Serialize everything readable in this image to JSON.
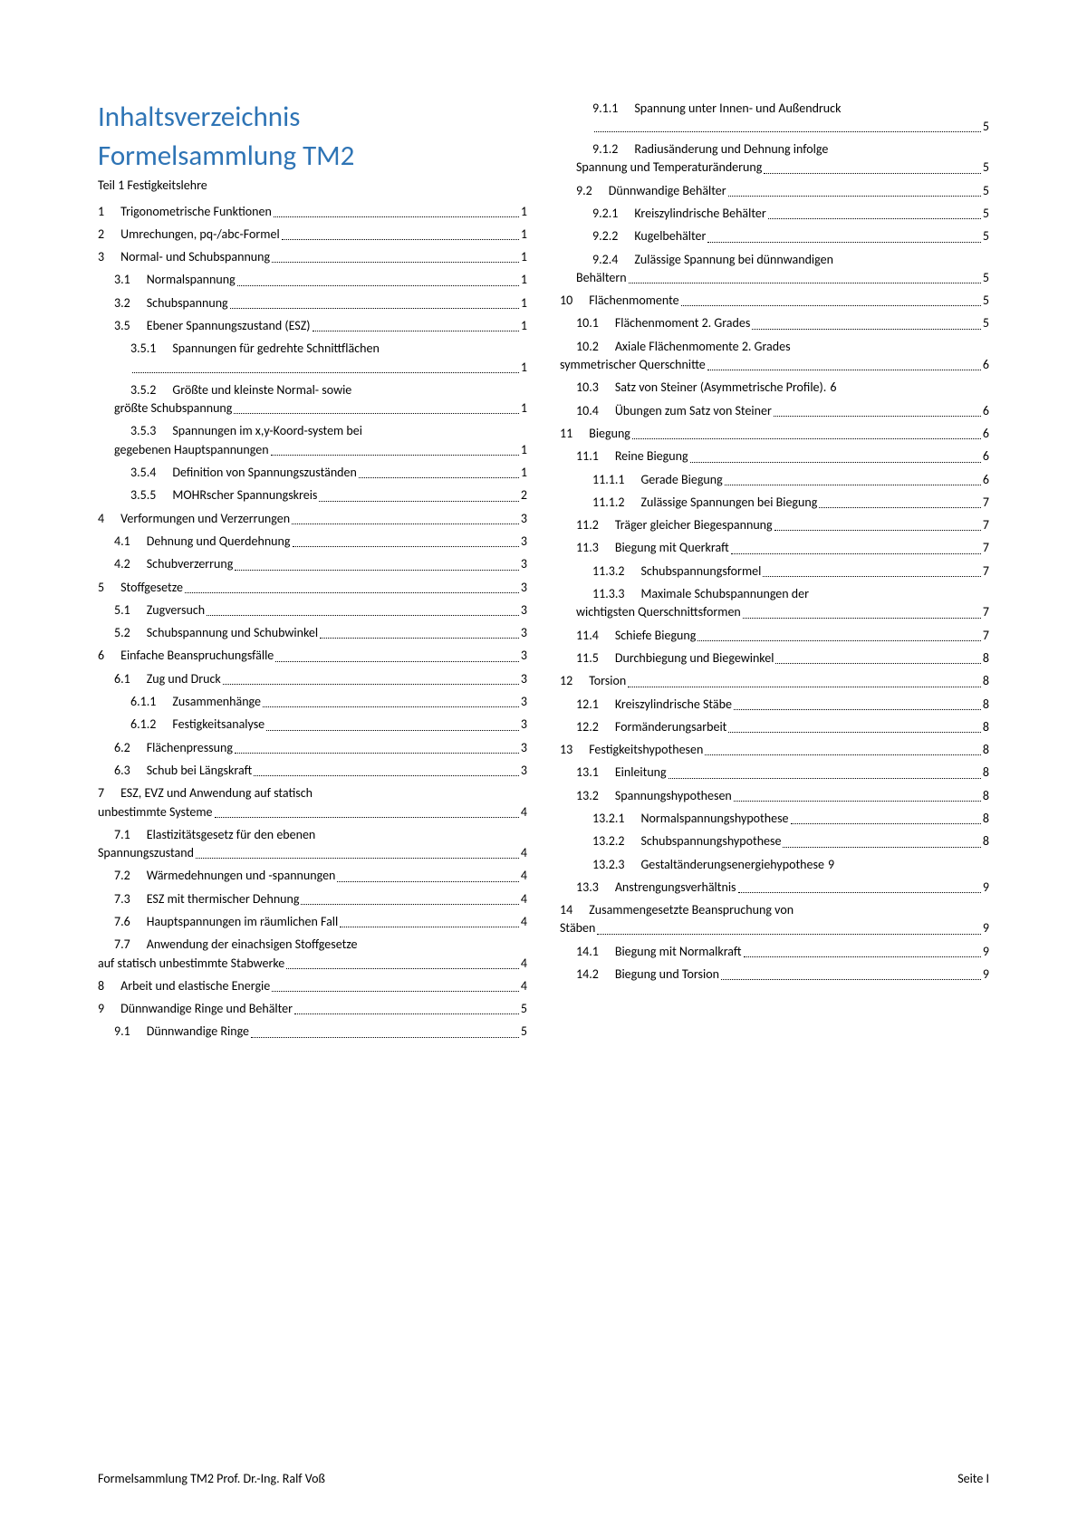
{
  "title1": "Inhaltsverzeichnis",
  "title2": "Formelsammlung TM2",
  "subtitle": "Teil 1 Festigkeitslehre",
  "footer_left": "Formelsammlung TM2 Prof. Dr.-Ing. Ralf Voß",
  "footer_right": "Seite I",
  "colors": {
    "heading": "#2e74b5",
    "text": "#000000",
    "background": "#ffffff"
  },
  "left": [
    {
      "lvl": 0,
      "num": "1",
      "text": "Trigonometrische Funktionen",
      "page": "1"
    },
    {
      "lvl": 0,
      "num": "2",
      "text": "Umrechungen, pq-/abc-Formel",
      "page": "1"
    },
    {
      "lvl": 0,
      "num": "3",
      "text": "Normal- und Schubspannung",
      "page": "1"
    },
    {
      "lvl": 1,
      "num": "3.1",
      "text": "Normalspannung",
      "page": "1"
    },
    {
      "lvl": 1,
      "num": "3.2",
      "text": "Schubspannung",
      "page": "1"
    },
    {
      "lvl": 1,
      "num": "3.5",
      "text": "Ebener Spannungszustand (ESZ)",
      "page": "1"
    },
    {
      "lvl": 2,
      "num": "3.5.1",
      "text": "Spannungen für gedrehte Schnittflächen",
      "text2": "",
      "page": "1",
      "multiline": true
    },
    {
      "lvl": 2,
      "num": "3.5.2",
      "text": "Größte und kleinste Normal- sowie",
      "text2": "größte Schubspannung",
      "page": "1",
      "multiline": true,
      "dedent": true
    },
    {
      "lvl": 2,
      "num": "3.5.3",
      "text": "Spannungen im x,y-Koord-system bei",
      "text2": "gegebenen Hauptspannungen",
      "page": "1",
      "multiline": true,
      "dedent": true
    },
    {
      "lvl": 2,
      "num": "3.5.4",
      "text": "Definition von Spannungszuständen",
      "page": "1"
    },
    {
      "lvl": 2,
      "num": "3.5.5",
      "text": "MOHRscher Spannungskreis",
      "page": "2"
    },
    {
      "lvl": 0,
      "num": "4",
      "text": "Verformungen und Verzerrungen",
      "page": "3"
    },
    {
      "lvl": 1,
      "num": "4.1",
      "text": "Dehnung und Querdehnung",
      "page": "3"
    },
    {
      "lvl": 1,
      "num": "4.2",
      "text": "Schubverzerrung",
      "page": "3"
    },
    {
      "lvl": 0,
      "num": "5",
      "text": "Stoffgesetze",
      "page": "3"
    },
    {
      "lvl": 1,
      "num": "5.1",
      "text": "Zugversuch",
      "page": "3"
    },
    {
      "lvl": 1,
      "num": "5.2",
      "text": "Schubspannung und Schubwinkel",
      "page": "3"
    },
    {
      "lvl": 0,
      "num": "6",
      "text": "Einfache Beanspruchungsfälle",
      "page": "3"
    },
    {
      "lvl": 1,
      "num": "6.1",
      "text": "Zug und Druck",
      "page": "3"
    },
    {
      "lvl": 2,
      "num": "6.1.1",
      "text": "Zusammenhänge",
      "page": "3"
    },
    {
      "lvl": 2,
      "num": "6.1.2",
      "text": "Festigkeitsanalyse",
      "page": "3"
    },
    {
      "lvl": 1,
      "num": "6.2",
      "text": "Flächenpressung",
      "page": "3"
    },
    {
      "lvl": 1,
      "num": "6.3",
      "text": "Schub bei Längskraft",
      "page": "3"
    },
    {
      "lvl": 0,
      "num": "7",
      "text": "ESZ, EVZ und Anwendung auf statisch",
      "text2": "unbestimmte Systeme",
      "page": "4",
      "multiline": true,
      "dedent2": true
    },
    {
      "lvl": 1,
      "num": "7.1",
      "text": "Elastizitätsgesetz für den ebenen",
      "text2": "Spannungszustand",
      "page": "4",
      "multiline": true,
      "dedent": true
    },
    {
      "lvl": 1,
      "num": "7.2",
      "text": "Wärmedehnungen und -spannungen",
      "page": "4"
    },
    {
      "lvl": 1,
      "num": "7.3",
      "text": "ESZ mit thermischer Dehnung",
      "page": "4"
    },
    {
      "lvl": 1,
      "num": "7.6",
      "text": "Hauptspannungen im räumlichen Fall",
      "page": "4"
    },
    {
      "lvl": 1,
      "num": "7.7",
      "text": "Anwendung der einachsigen Stoffgesetze",
      "text2": "auf statisch unbestimmte Stabwerke",
      "page": "4",
      "multiline": true,
      "dedent": true
    },
    {
      "lvl": 0,
      "num": "8",
      "text": "Arbeit und elastische Energie",
      "page": "4"
    },
    {
      "lvl": 0,
      "num": "9",
      "text": "Dünnwandige Ringe und Behälter",
      "page": "5"
    },
    {
      "lvl": 1,
      "num": "9.1",
      "text": "Dünnwandige Ringe",
      "page": "5"
    }
  ],
  "right": [
    {
      "lvl": 2,
      "num": "9.1.1",
      "text": "Spannung unter Innen- und Außendruck",
      "text2": "",
      "page": "5",
      "multiline": true
    },
    {
      "lvl": 2,
      "num": "9.1.2",
      "text": "Radiusänderung und Dehnung infolge",
      "text2": "Spannung und Temperaturänderung",
      "page": "5",
      "multiline": true,
      "dedent": true
    },
    {
      "lvl": 1,
      "num": "9.2",
      "text": "Dünnwandige Behälter",
      "page": "5"
    },
    {
      "lvl": 2,
      "num": "9.2.1",
      "text": "Kreiszylindrische Behälter",
      "page": "5"
    },
    {
      "lvl": 2,
      "num": "9.2.2",
      "text": "Kugelbehälter",
      "page": "5"
    },
    {
      "lvl": 2,
      "num": "9.2.4",
      "text": "Zulässige Spannung bei dünnwandigen",
      "text2": "Behältern",
      "page": "5",
      "multiline": true,
      "dedent": true
    },
    {
      "lvl": 0,
      "num": "10",
      "text": "Flächenmomente",
      "page": "5"
    },
    {
      "lvl": 1,
      "num": "10.1",
      "text": "Flächenmoment 2. Grades",
      "page": "5"
    },
    {
      "lvl": 1,
      "num": "10.2",
      "text": "Axiale Flächenmomente 2. Grades",
      "text2": "symmetrischer Querschnitte",
      "page": "6",
      "multiline": true,
      "dedent": true
    },
    {
      "lvl": 1,
      "num": "10.3",
      "text": "Satz von Steiner (Asymmetrische Profile).",
      "page": "6",
      "noleader": true
    },
    {
      "lvl": 1,
      "num": "10.4",
      "text": "Übungen zum Satz von Steiner",
      "page": "6"
    },
    {
      "lvl": 0,
      "num": "11",
      "text": "Biegung",
      "page": "6"
    },
    {
      "lvl": 1,
      "num": "11.1",
      "text": "Reine Biegung",
      "page": "6"
    },
    {
      "lvl": 2,
      "num": "11.1.1",
      "text": "Gerade Biegung",
      "page": "6"
    },
    {
      "lvl": 2,
      "num": "11.1.2",
      "text": "Zulässige Spannungen bei Biegung",
      "page": "7"
    },
    {
      "lvl": 1,
      "num": "11.2",
      "text": "Träger gleicher Biegespannung",
      "page": "7"
    },
    {
      "lvl": 1,
      "num": "11.3",
      "text": "Biegung mit Querkraft",
      "page": "7"
    },
    {
      "lvl": 2,
      "num": "11.3.2",
      "text": "Schubspannungsformel",
      "page": "7"
    },
    {
      "lvl": 2,
      "num": "11.3.3",
      "text": "Maximale Schubspannungen der",
      "text2": "wichtigsten Querschnittsformen",
      "page": "7",
      "multiline": true,
      "dedent": true
    },
    {
      "lvl": 1,
      "num": "11.4",
      "text": "Schiefe Biegung",
      "page": "7"
    },
    {
      "lvl": 1,
      "num": "11.5",
      "text": "Durchbiegung und Biegewinkel",
      "page": "8"
    },
    {
      "lvl": 0,
      "num": "12",
      "text": "Torsion",
      "page": "8"
    },
    {
      "lvl": 1,
      "num": "12.1",
      "text": "Kreiszylindrische Stäbe",
      "page": "8"
    },
    {
      "lvl": 1,
      "num": "12.2",
      "text": "Formänderungsarbeit",
      "page": "8"
    },
    {
      "lvl": 0,
      "num": "13",
      "text": "Festigkeitshypothesen",
      "page": "8"
    },
    {
      "lvl": 1,
      "num": "13.1",
      "text": "Einleitung",
      "page": "8"
    },
    {
      "lvl": 1,
      "num": "13.2",
      "text": "Spannungshypothesen",
      "page": "8"
    },
    {
      "lvl": 2,
      "num": "13.2.1",
      "text": "Normalspannungshypothese",
      "page": "8"
    },
    {
      "lvl": 2,
      "num": "13.2.2",
      "text": "Schubspannungshypothese",
      "page": "8"
    },
    {
      "lvl": 2,
      "num": "13.2.3",
      "text": "Gestaltänderungsenergiehypothese",
      "page": "9",
      "noleader": true
    },
    {
      "lvl": 1,
      "num": "13.3",
      "text": "Anstrengungsverhältnis",
      "page": "9"
    },
    {
      "lvl": 0,
      "num": "14",
      "text": "Zusammengesetzte Beanspruchung von",
      "text2": "Stäben",
      "page": "9",
      "multiline": true,
      "dedent2": true
    },
    {
      "lvl": 1,
      "num": "14.1",
      "text": "Biegung mit Normalkraft",
      "page": "9"
    },
    {
      "lvl": 1,
      "num": "14.2",
      "text": "Biegung und Torsion",
      "page": "9"
    }
  ]
}
